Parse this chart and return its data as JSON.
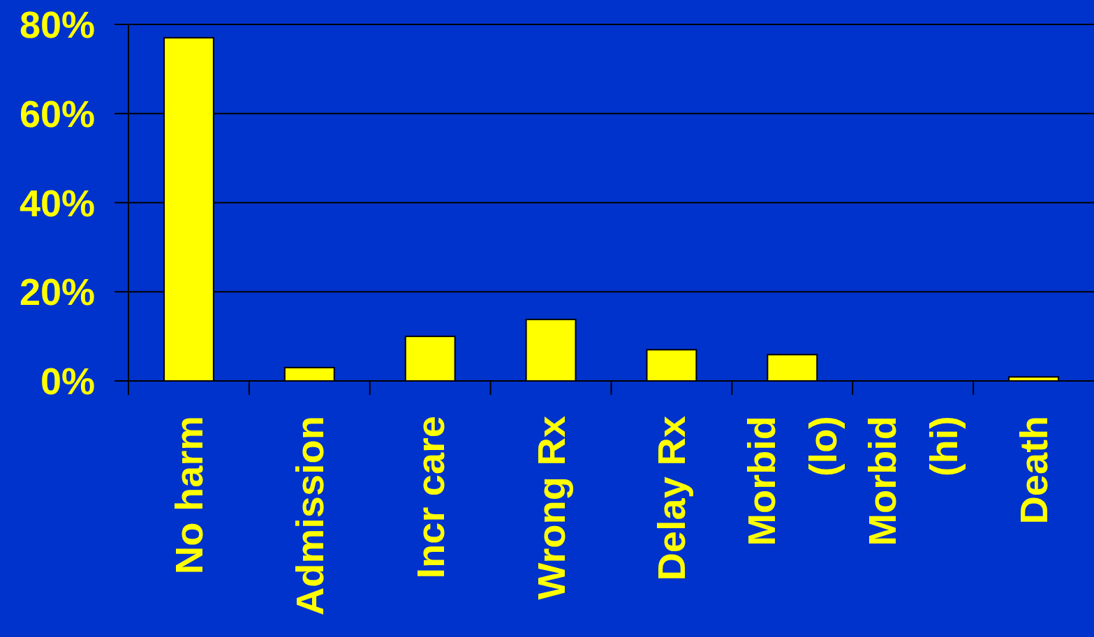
{
  "chart_data": {
    "type": "bar",
    "categories": [
      "No harm",
      "Admission",
      "Incr care",
      "Wrong Rx",
      "Delay Rx",
      "Morbid (lo)",
      "Morbid (hi)",
      "Death"
    ],
    "values": [
      77,
      3,
      10,
      13.8,
      7,
      5.9,
      0,
      0.9
    ],
    "color": "#ffff00",
    "ylim": [
      0,
      80
    ],
    "yticks": [
      {
        "value": 0,
        "label": "0%"
      },
      {
        "value": 20,
        "label": "20%"
      },
      {
        "value": 40,
        "label": "40%"
      },
      {
        "value": 60,
        "label": "60%"
      },
      {
        "value": 80,
        "label": "80%"
      }
    ],
    "grid": "y"
  }
}
